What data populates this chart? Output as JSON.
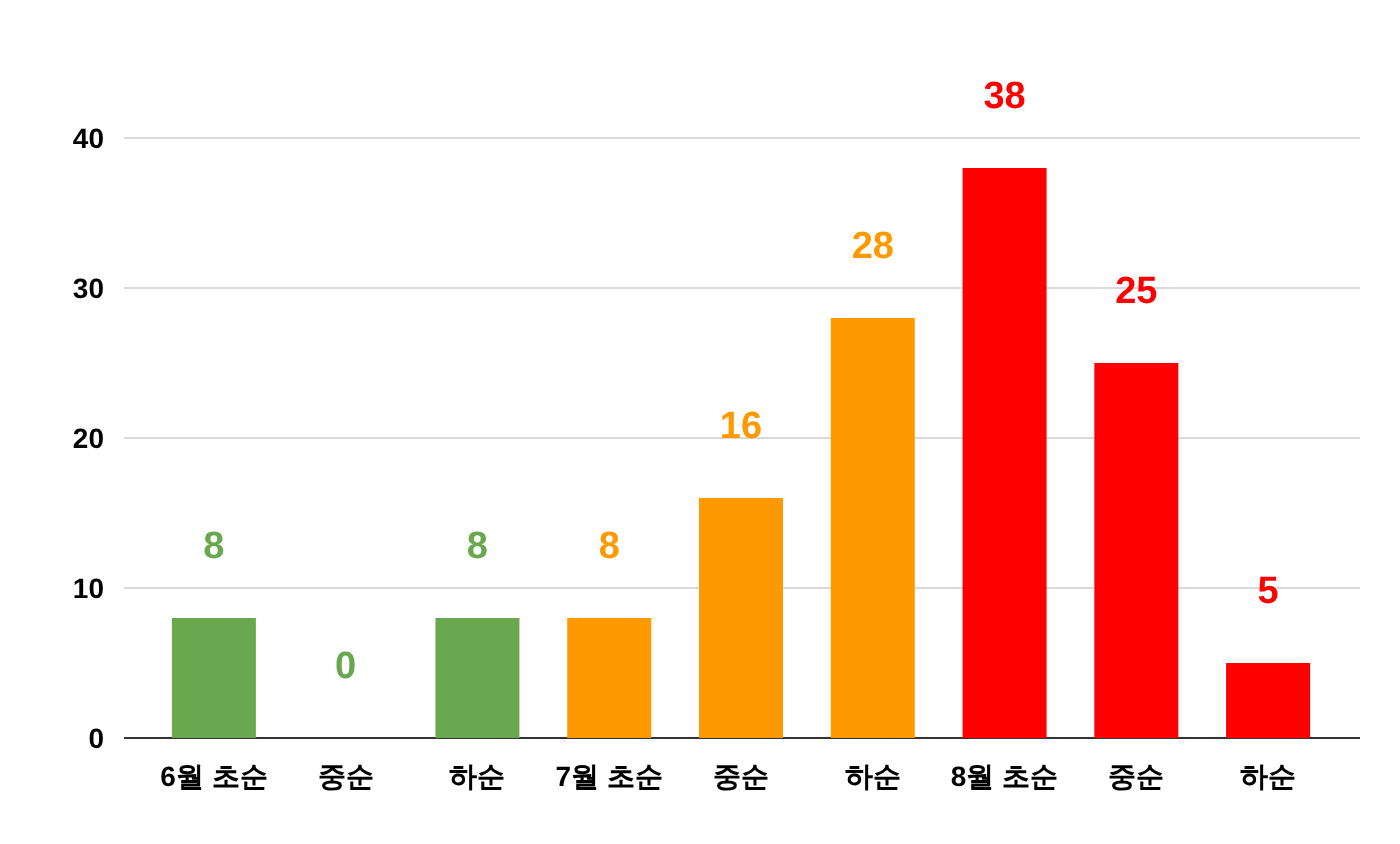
{
  "chart_data": {
    "type": "bar",
    "categories": [
      "6월 초순",
      "중순",
      "하순",
      "7월 초순",
      "중순",
      "하순",
      "8월 초순",
      "중순",
      "하순"
    ],
    "values": [
      8,
      0,
      8,
      8,
      16,
      28,
      38,
      25,
      5
    ],
    "colors": [
      "#6aa84f",
      "#6aa84f",
      "#6aa84f",
      "#ff9900",
      "#ff9900",
      "#ff9900",
      "#ff0000",
      "#ff0000",
      "#ff0000"
    ],
    "ylim": [
      0,
      40
    ],
    "yticks": [
      0,
      10,
      20,
      30,
      40
    ],
    "grid": "y",
    "data_labels": true
  }
}
